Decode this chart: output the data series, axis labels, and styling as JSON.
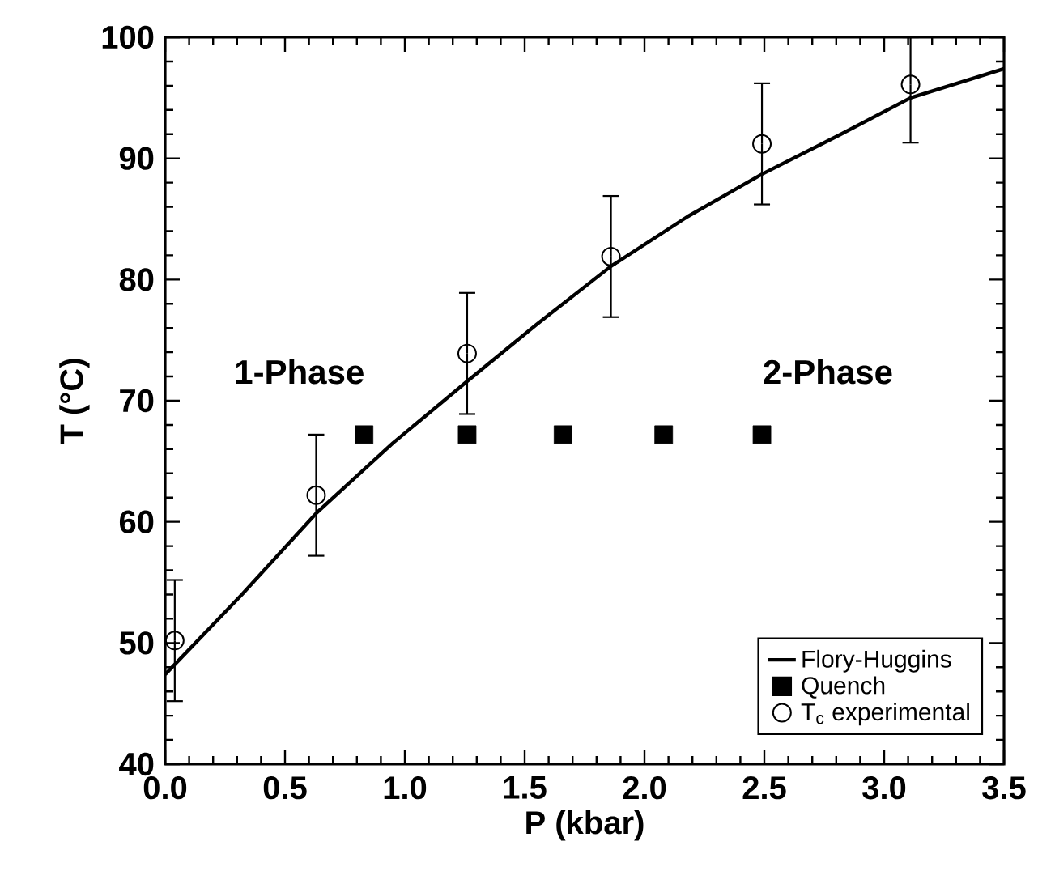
{
  "chart_data": {
    "type": "scatter",
    "xlabel": "P (kbar)",
    "ylabel": "T (°C)",
    "xlim": [
      0,
      3.5
    ],
    "xticks": [
      {
        "value": 0,
        "label": "0.0"
      },
      0.5,
      {
        "value": 1,
        "label": "1.0"
      },
      1.5,
      {
        "value": 2,
        "label": "2.0"
      },
      2.5,
      {
        "value": 3,
        "label": "3.0"
      },
      3.5
    ],
    "ylim": [
      40,
      100
    ],
    "yticks": [
      40,
      50,
      60,
      70,
      80,
      90,
      100
    ],
    "legend": "bottom right",
    "grid": false,
    "annotations": [
      "1-Phase",
      "2-Phase"
    ],
    "series": [
      {
        "name": "Flory-Huggins",
        "type": "line",
        "color": "#000000",
        "marker": "none",
        "line_style": "solid",
        "x": [
          0,
          0.32,
          0.63,
          0.95,
          1.26,
          1.55,
          1.86,
          2.18,
          2.49,
          2.81,
          3.11,
          3.5
        ],
        "values": [
          47.4,
          54.0,
          60.7,
          66.5,
          71.6,
          76.3,
          81.1,
          85.2,
          88.7,
          91.9,
          95.0,
          97.4
        ]
      },
      {
        "name": "Quench",
        "color": "#000000",
        "marker": "square",
        "x": [
          0.83,
          1.26,
          1.66,
          2.08,
          2.49
        ],
        "values": [
          67.2,
          67.2,
          67.2,
          67.2,
          67.2
        ]
      },
      {
        "name": "T$_{c}$ experimental",
        "color": "#000000",
        "marker": "circle",
        "x": [
          0.04,
          0.63,
          1.26,
          1.86,
          2.49,
          3.11
        ],
        "values": [
          50.2,
          62.2,
          73.9,
          81.9,
          91.2,
          96.1
        ],
        "errors": [
          5,
          5,
          5,
          5,
          5,
          [
            91.3,
            100
          ]
        ]
      }
    ]
  }
}
